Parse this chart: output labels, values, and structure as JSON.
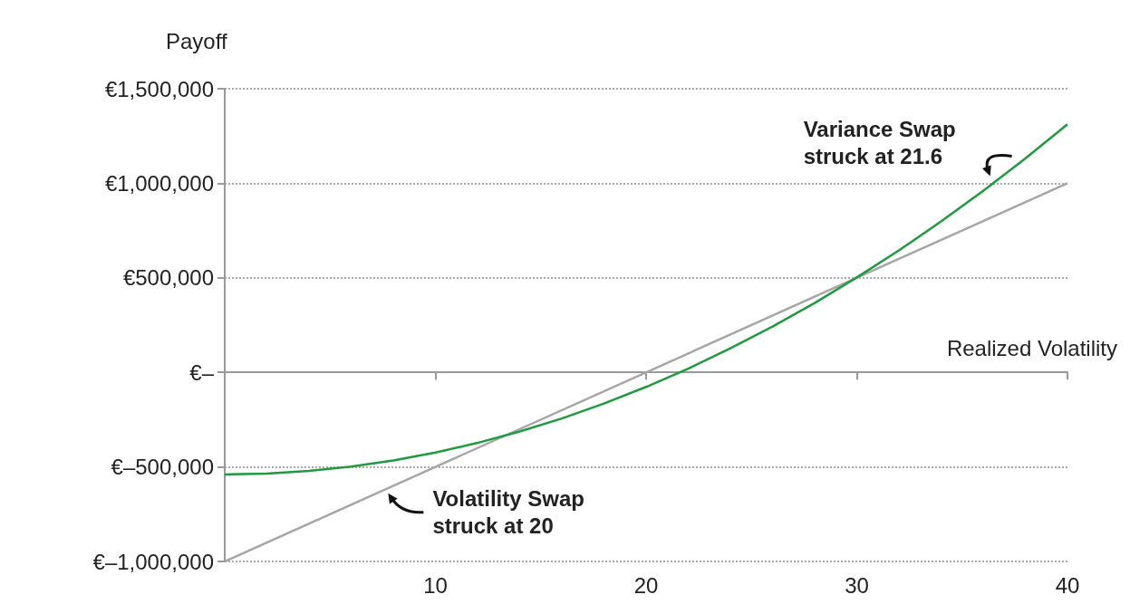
{
  "chart_data": {
    "type": "line",
    "ylabel": "Payoff",
    "xlabel": "Realized Volatility",
    "xlim": [
      0,
      40
    ],
    "xticks": [
      10,
      20,
      30,
      40
    ],
    "ylim": [
      -1000000,
      1500000
    ],
    "yticks": [
      {
        "value": -1000000,
        "label": "€–1,000,000"
      },
      {
        "value": -500000,
        "label": "€–500,000"
      },
      {
        "value": 0,
        "label": "€–"
      },
      {
        "value": 500000,
        "label": "€500,000"
      },
      {
        "value": 1000000,
        "label": "€1,000,000"
      },
      {
        "value": 1500000,
        "label": "€1,500,000"
      }
    ],
    "grid": "y",
    "marker": "none",
    "line_style": "solid",
    "series": [
      {
        "color": "#a6a6a6",
        "x": [
          0,
          40
        ],
        "values": [
          -1000000,
          1000000
        ]
      },
      {
        "color": "#1f9a3e",
        "x": [
          0,
          2,
          4,
          6,
          8,
          10,
          12,
          14,
          16,
          18,
          20,
          22,
          24,
          26,
          28,
          30,
          32,
          34,
          36,
          38,
          40
        ],
        "values": [
          -540000,
          -535000,
          -521000,
          -498000,
          -466000,
          -424000,
          -373000,
          -313000,
          -244000,
          -165000,
          -77000,
          20000,
          127000,
          242000,
          367000,
          502000,
          645000,
          798000,
          960000,
          1131000,
          1312000
        ]
      }
    ],
    "annotations": [
      {
        "text": "Variance Swap\nstruck at 21.6",
        "x": 36.5,
        "y": 1000000
      },
      {
        "text": "Volatility Swap\nstruck at 20",
        "x": 7.5,
        "y": -620000
      }
    ]
  }
}
